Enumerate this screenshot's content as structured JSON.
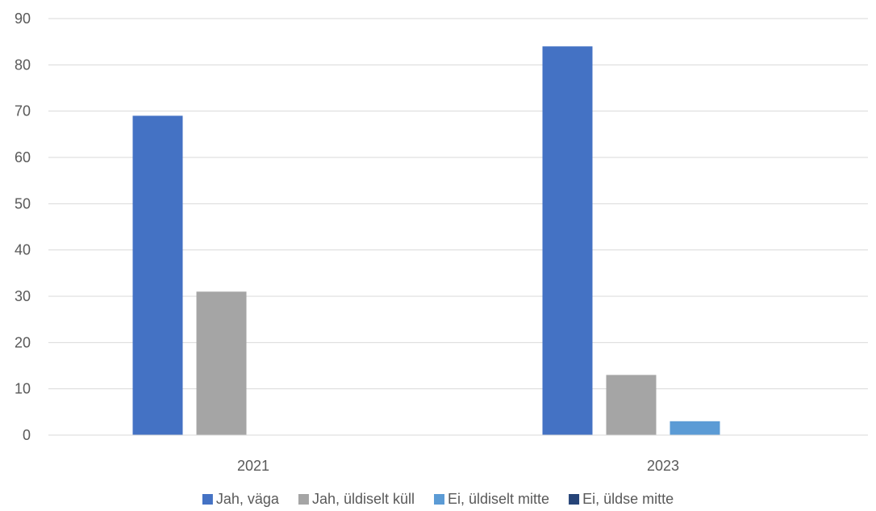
{
  "chart_data": {
    "type": "bar",
    "categories": [
      "2021",
      "2023"
    ],
    "series": [
      {
        "name": "Jah, väga",
        "values": [
          69,
          84
        ],
        "color": "#4472c4"
      },
      {
        "name": "Jah, üldiselt küll",
        "values": [
          31,
          13
        ],
        "color": "#a5a5a5"
      },
      {
        "name": "Ei, üldiselt mitte",
        "values": [
          0,
          3
        ],
        "color": "#5b9bd5"
      },
      {
        "name": "Ei, üldse mitte",
        "values": [
          0,
          0
        ],
        "color": "#264478"
      }
    ],
    "ylim": [
      0,
      90
    ],
    "y_ticks": [
      0,
      10,
      20,
      30,
      40,
      50,
      60,
      70,
      80,
      90
    ],
    "grid": true,
    "legend_position": "bottom"
  }
}
